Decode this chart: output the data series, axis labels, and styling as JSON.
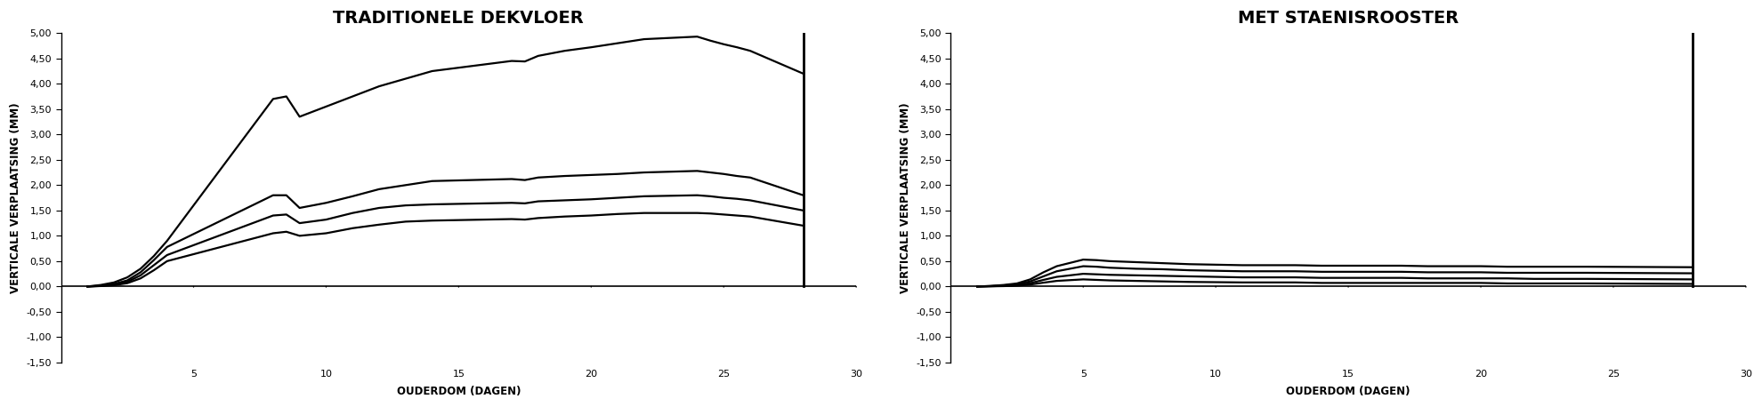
{
  "title1": "TRADITIONELE DEKVLOER",
  "title2": "MET STAENISROOSTER",
  "ylabel": "VERTICALE VERPLAATSING (MM)",
  "xlabel": "OUDERDOM (DAGEN)",
  "ylim": [
    -1.5,
    5.0
  ],
  "xlim": [
    0,
    30
  ],
  "yticks": [
    -1.5,
    -1.0,
    -0.5,
    0.0,
    0.5,
    1.0,
    1.5,
    2.0,
    2.5,
    3.0,
    3.5,
    4.0,
    4.5,
    5.0
  ],
  "xticks": [
    5,
    10,
    15,
    20,
    25,
    30
  ],
  "vline_x": 28,
  "vline_ymax": 5.0,
  "chart1_lines": [
    [
      0.0,
      0.03,
      0.08,
      0.18,
      0.35,
      0.6,
      0.9,
      3.7,
      3.75,
      3.35,
      3.55,
      3.75,
      3.95,
      4.1,
      4.25,
      4.45,
      4.44,
      4.55,
      4.65,
      4.72,
      4.8,
      4.88,
      4.93,
      4.85,
      4.78,
      4.72,
      4.65,
      4.2
    ],
    [
      0.0,
      0.015,
      0.05,
      0.12,
      0.28,
      0.52,
      0.78,
      1.8,
      1.8,
      1.55,
      1.65,
      1.78,
      1.92,
      2.0,
      2.08,
      2.12,
      2.1,
      2.15,
      2.18,
      2.2,
      2.22,
      2.25,
      2.28,
      2.25,
      2.22,
      2.18,
      2.15,
      1.8
    ],
    [
      0.0,
      0.01,
      0.04,
      0.09,
      0.22,
      0.42,
      0.62,
      1.4,
      1.42,
      1.25,
      1.32,
      1.45,
      1.55,
      1.6,
      1.62,
      1.65,
      1.64,
      1.68,
      1.7,
      1.72,
      1.75,
      1.78,
      1.8,
      1.78,
      1.75,
      1.73,
      1.7,
      1.5
    ],
    [
      0.0,
      0.008,
      0.025,
      0.065,
      0.16,
      0.32,
      0.5,
      1.05,
      1.08,
      1.0,
      1.05,
      1.15,
      1.22,
      1.28,
      1.3,
      1.33,
      1.32,
      1.35,
      1.38,
      1.4,
      1.43,
      1.45,
      1.45,
      1.44,
      1.42,
      1.4,
      1.38,
      1.2
    ]
  ],
  "chart1_x": [
    1,
    1.5,
    2,
    2.5,
    3,
    3.5,
    4,
    8,
    8.5,
    9,
    10,
    11,
    12,
    13,
    14,
    17,
    17.5,
    18,
    19,
    20,
    21,
    22,
    24,
    24.5,
    25,
    25.5,
    26,
    28
  ],
  "chart2_lines": [
    [
      0.0,
      0.01,
      0.03,
      0.06,
      0.14,
      0.28,
      0.4,
      0.53,
      0.52,
      0.5,
      0.48,
      0.46,
      0.44,
      0.43,
      0.42,
      0.42,
      0.42,
      0.41,
      0.41,
      0.41,
      0.41,
      0.4,
      0.4,
      0.4,
      0.39,
      0.39,
      0.39,
      0.38
    ],
    [
      0.0,
      0.008,
      0.02,
      0.045,
      0.1,
      0.2,
      0.3,
      0.4,
      0.39,
      0.37,
      0.35,
      0.34,
      0.32,
      0.31,
      0.3,
      0.3,
      0.3,
      0.29,
      0.29,
      0.29,
      0.29,
      0.28,
      0.28,
      0.28,
      0.27,
      0.27,
      0.27,
      0.26
    ],
    [
      0.0,
      0.005,
      0.012,
      0.028,
      0.065,
      0.13,
      0.19,
      0.25,
      0.24,
      0.23,
      0.22,
      0.21,
      0.2,
      0.19,
      0.18,
      0.18,
      0.18,
      0.17,
      0.17,
      0.17,
      0.17,
      0.16,
      0.16,
      0.16,
      0.16,
      0.15,
      0.15,
      0.14
    ],
    [
      0.0,
      0.003,
      0.007,
      0.015,
      0.038,
      0.075,
      0.11,
      0.14,
      0.13,
      0.12,
      0.11,
      0.1,
      0.09,
      0.085,
      0.08,
      0.08,
      0.08,
      0.07,
      0.07,
      0.07,
      0.07,
      0.07,
      0.07,
      0.07,
      0.06,
      0.06,
      0.06,
      0.05
    ]
  ],
  "chart2_x": [
    1,
    1.5,
    2,
    2.5,
    3,
    3.5,
    4,
    5,
    5.5,
    6,
    7,
    8,
    9,
    10,
    11,
    12,
    13,
    14,
    15,
    16,
    17,
    18,
    19,
    20,
    21,
    22,
    24,
    28
  ],
  "line_color": "#000000",
  "bg_color": "#ffffff",
  "line_width": 1.6,
  "title_fontsize": 14,
  "axis_label_fontsize": 8.5,
  "tick_fontsize": 8
}
